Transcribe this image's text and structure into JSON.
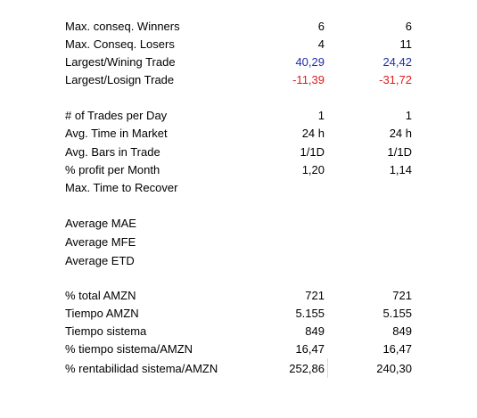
{
  "colors": {
    "positive": "#1f2ea8",
    "negative": "#e01b1b",
    "text": "#000000",
    "gridline": "#d9d9d9"
  },
  "rows": [
    {
      "label": "Max. conseq. Winners",
      "v1": "6",
      "v2": "6"
    },
    {
      "label": "Max. Conseq. Losers",
      "v1": "4",
      "v2": "11"
    },
    {
      "label": "Largest/Wining Trade",
      "v1": "40,29",
      "v2": "24,42"
    },
    {
      "label": "Largest/Losign Trade",
      "v1": "-11,39",
      "v2": "-31,72"
    },
    {
      "label": "# of Trades per Day",
      "v1": "1",
      "v2": "1"
    },
    {
      "label": "Avg. Time in Market",
      "v1": "24 h",
      "v2": "24 h"
    },
    {
      "label": "Avg. Bars in Trade",
      "v1": "1/1D",
      "v2": "1/1D"
    },
    {
      "label": "% profit per Month",
      "v1": "1,20",
      "v2": "1,14"
    },
    {
      "label": "Max. Time to Recover",
      "v1": "",
      "v2": ""
    },
    {
      "label": "Average MAE",
      "v1": "",
      "v2": ""
    },
    {
      "label": "Average MFE",
      "v1": "",
      "v2": ""
    },
    {
      "label": "Average ETD",
      "v1": "",
      "v2": ""
    },
    {
      "label": "% total AMZN",
      "v1": "721",
      "v2": "721"
    },
    {
      "label": "Tiempo AMZN",
      "v1": "5.155",
      "v2": "5.155"
    },
    {
      "label": "Tiempo sistema",
      "v1": "849",
      "v2": "849"
    },
    {
      "label": "% tiempo sistema/AMZN",
      "v1": "16,47",
      "v2": "16,47"
    },
    {
      "label": "% rentabilidad sistema/AMZN",
      "v1": "252,86",
      "v2": "240,30"
    }
  ]
}
